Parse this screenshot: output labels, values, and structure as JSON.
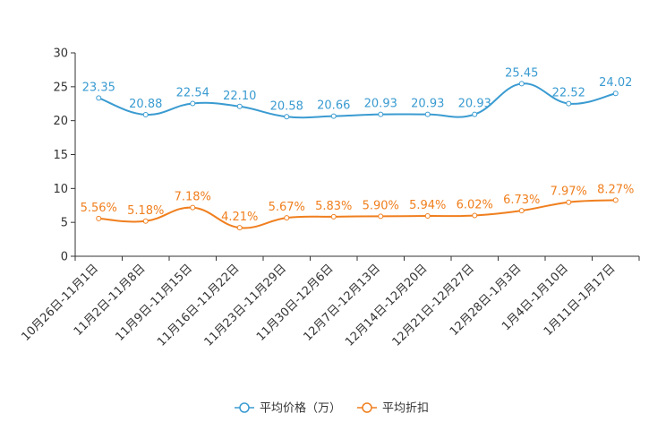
{
  "chart_data": {
    "type": "line",
    "title": "",
    "xlabel": "",
    "ylabel": "",
    "ylim": [
      0,
      30
    ],
    "yticks": [
      0,
      5,
      10,
      15,
      20,
      25,
      30
    ],
    "grid": false,
    "legend_position": "bottom",
    "categories": [
      "10月26日-11月1日",
      "11月2日-11月8日",
      "11月9日-11月15日",
      "11月16日-11月22日",
      "11月23日-11月29日",
      "11月30日-12月6日",
      "12月7日-12月13日",
      "12月14日-12月20日",
      "12月21日-12月27日",
      "12月28日-1月3日",
      "1月4日-1月10日",
      "1月11日-1月17日"
    ],
    "series": [
      {
        "name": "平均价格（万）",
        "color": "#3a9bd1",
        "values": [
          23.35,
          20.88,
          22.54,
          22.1,
          20.58,
          20.66,
          20.93,
          20.93,
          20.93,
          25.45,
          22.52,
          24.02
        ],
        "labels": [
          "23.35",
          "20.88",
          "22.54",
          "22.10",
          "20.58",
          "20.66",
          "20.93",
          "20.93",
          "20.93",
          "25.45",
          "22.52",
          "24.02"
        ]
      },
      {
        "name": "平均折扣",
        "color": "#f07f1e",
        "values": [
          5.56,
          5.18,
          7.18,
          4.21,
          5.67,
          5.83,
          5.9,
          5.94,
          6.02,
          6.73,
          7.97,
          8.27
        ],
        "labels": [
          "5.56%",
          "5.18%",
          "7.18%",
          "4.21%",
          "5.67%",
          "5.83%",
          "5.90%",
          "5.94%",
          "6.02%",
          "6.73%",
          "7.97%",
          "8.27%"
        ]
      }
    ]
  }
}
